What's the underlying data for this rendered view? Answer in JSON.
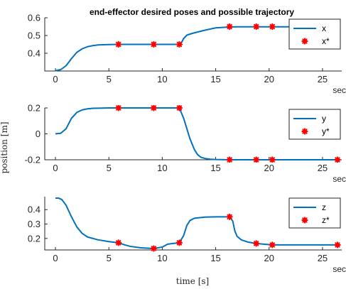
{
  "chart_data": {
    "title": "end-effector desired poses and possible trajectory",
    "xlabel": "time [s]",
    "ylabel": "position [m]",
    "colors": {
      "line": "#0072bd",
      "marker": "#ff0000",
      "axis": "#262626"
    },
    "panels": [
      {
        "type": "line",
        "xlim": [
          -1,
          26.8
        ],
        "ylim": [
          0.3,
          0.6
        ],
        "xticks": [
          0,
          5,
          10,
          15,
          20,
          25
        ],
        "yticks": [
          0.4,
          0.5,
          0.6
        ],
        "ytick_labels": [
          "0.4",
          "0.5",
          "0.6"
        ],
        "x_unit": "sec",
        "legend_position": "top-right",
        "series": [
          {
            "name": "x",
            "kind": "line",
            "x": [
              0,
              0.5,
              1,
              1.5,
              2,
              2.5,
              3,
              3.5,
              4,
              5,
              5.9,
              7,
              8,
              9.2,
              10,
              11,
              11.6,
              11.8,
              12,
              12.3,
              12.7,
              13,
              14,
              15,
              16.3,
              17,
              18,
              18.8,
              19.5,
              20.3,
              22,
              24,
              25,
              26.4
            ],
            "y": [
              0.302,
              0.308,
              0.33,
              0.37,
              0.405,
              0.425,
              0.437,
              0.443,
              0.447,
              0.449,
              0.45,
              0.45,
              0.45,
              0.45,
              0.45,
              0.45,
              0.45,
              0.46,
              0.483,
              0.502,
              0.51,
              0.515,
              0.53,
              0.543,
              0.548,
              0.549,
              0.549,
              0.549,
              0.549,
              0.549,
              0.549,
              0.549,
              0.549,
              0.549
            ]
          },
          {
            "name": "x*",
            "kind": "markers",
            "x": [
              5.9,
              9.2,
              11.6,
              16.3,
              18.8,
              20.3,
              26.4
            ],
            "y": [
              0.45,
              0.45,
              0.45,
              0.55,
              0.55,
              0.55,
              0.55
            ]
          }
        ]
      },
      {
        "type": "line",
        "xlim": [
          -1,
          26.8
        ],
        "ylim": [
          -0.2,
          0.2
        ],
        "xticks": [
          0,
          5,
          10,
          15,
          20,
          25
        ],
        "yticks": [
          -0.2,
          0,
          0.2
        ],
        "ytick_labels": [
          "-0.2",
          "0",
          "0.2"
        ],
        "x_unit": "sec",
        "legend_position": "top-right",
        "series": [
          {
            "name": "y",
            "kind": "line",
            "x": [
              0,
              0.5,
              1,
              1.5,
              2,
              2.5,
              3,
              3.5,
              4,
              5,
              5.9,
              7,
              8,
              9.2,
              10,
              11,
              11.6,
              12,
              12.3,
              12.6,
              13,
              13.3,
              13.6,
              14,
              14.5,
              15,
              16.3,
              18,
              18.8,
              20.3,
              22,
              24,
              26.4
            ],
            "y": [
              0,
              0.005,
              0.04,
              0.12,
              0.165,
              0.185,
              0.193,
              0.197,
              0.198,
              0.2,
              0.2,
              0.2,
              0.2,
              0.2,
              0.2,
              0.2,
              0.2,
              0.12,
              0.04,
              -0.04,
              -0.12,
              -0.16,
              -0.18,
              -0.19,
              -0.196,
              -0.198,
              -0.2,
              -0.2,
              -0.2,
              -0.2,
              -0.2,
              -0.2,
              -0.2
            ]
          },
          {
            "name": "y*",
            "kind": "markers",
            "x": [
              5.9,
              9.2,
              11.6,
              16.3,
              18.8,
              20.3,
              26.4
            ],
            "y": [
              0.2,
              0.2,
              0.2,
              -0.2,
              -0.2,
              -0.2,
              -0.2
            ]
          }
        ]
      },
      {
        "type": "line",
        "xlim": [
          -1,
          26.8
        ],
        "ylim": [
          0.12,
          0.49
        ],
        "xticks": [
          0,
          5,
          10,
          15,
          20,
          25
        ],
        "yticks": [
          0.2,
          0.3,
          0.4
        ],
        "ytick_labels": [
          "0.2",
          "0.3",
          "0.4"
        ],
        "x_unit": "sec",
        "legend_position": "top-right",
        "series": [
          {
            "name": "z",
            "kind": "line",
            "x": [
              0,
              0.3,
              0.6,
              1,
              1.5,
              2,
              2.5,
              3,
              4,
              5,
              5.9,
              6.5,
              7,
              8,
              9.2,
              10,
              10.5,
              11,
              11.6,
              12,
              12.3,
              12.6,
              13,
              14,
              15,
              16.3,
              16.6,
              16.8,
              17,
              17.4,
              18,
              18.8,
              19.5,
              20.3,
              22,
              24,
              26.4
            ],
            "y": [
              0.48,
              0.48,
              0.47,
              0.43,
              0.35,
              0.28,
              0.235,
              0.21,
              0.19,
              0.178,
              0.17,
              0.155,
              0.145,
              0.135,
              0.13,
              0.14,
              0.16,
              0.165,
              0.17,
              0.22,
              0.29,
              0.325,
              0.34,
              0.348,
              0.35,
              0.35,
              0.32,
              0.25,
              0.215,
              0.19,
              0.175,
              0.165,
              0.16,
              0.155,
              0.155,
              0.155,
              0.155
            ]
          },
          {
            "name": "z*",
            "kind": "markers",
            "x": [
              5.9,
              9.2,
              11.6,
              16.3,
              18.8,
              20.3,
              26.4
            ],
            "y": [
              0.17,
              0.13,
              0.17,
              0.35,
              0.165,
              0.155,
              0.155
            ]
          }
        ]
      }
    ]
  }
}
